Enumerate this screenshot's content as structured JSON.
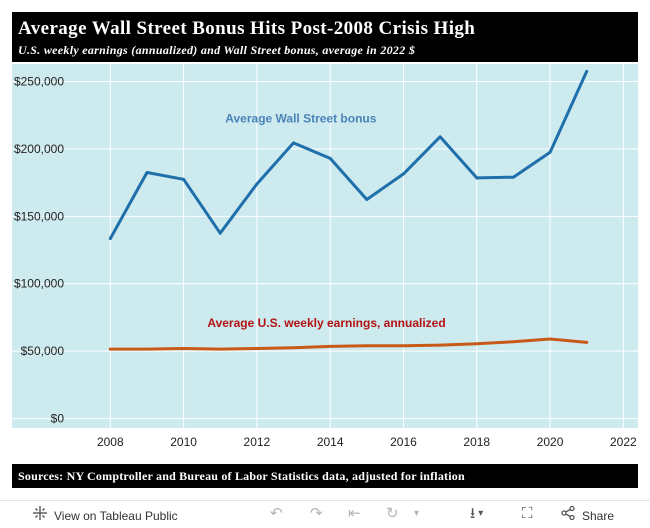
{
  "header": {
    "title": "Average Wall Street Bonus Hits Post-2008 Crisis High",
    "subtitle": "U.S. weekly earnings (annualized) and Wall Street bonus, average in 2022 $"
  },
  "footer": {
    "source": "Sources: NY Comptroller and Bureau of Labor Statistics data, adjusted for inflation"
  },
  "toolbar": {
    "view_label": "View on Tableau Public",
    "share_label": "Share",
    "icons": [
      "tableau-logo-icon",
      "undo-icon",
      "redo-icon",
      "revert-icon",
      "refresh-icon",
      "pause-icon",
      "download-icon",
      "fullscreen-icon",
      "share-icon"
    ]
  },
  "colors": {
    "plot_background": "#cdeaef",
    "bonus_line": "#1f6fab",
    "earnings_line": "#c85a19",
    "bonus_label": "#4a83b8",
    "earnings_label": "#b31212"
  },
  "chart_data": {
    "type": "line",
    "title": "Average Wall Street Bonus Hits Post-2008 Crisis High",
    "subtitle": "U.S. weekly earnings (annualized) and Wall Street bonus, average in 2022 $",
    "xlabel": "",
    "ylabel": "",
    "xlim": [
      2006.9,
      2022.4
    ],
    "ylim": [
      -7000,
      263000
    ],
    "x_ticks": [
      2008,
      2010,
      2012,
      2014,
      2016,
      2018,
      2020,
      2022
    ],
    "y_ticks": [
      0,
      50000,
      100000,
      150000,
      200000,
      250000
    ],
    "y_tick_labels": [
      "$0",
      "$50,000",
      "$100,000",
      "$150,000",
      "$200,000",
      "$250,000"
    ],
    "grid": true,
    "series": [
      {
        "name": "Average Wall Street bonus",
        "x": [
          2008,
          2009,
          2010,
          2011,
          2012,
          2013,
          2014,
          2015,
          2016,
          2017,
          2018,
          2019,
          2020,
          2021
        ],
        "values": [
          133500,
          182500,
          177500,
          137500,
          174000,
          204500,
          193000,
          162500,
          181500,
          209000,
          178500,
          179000,
          197500,
          257500
        ]
      },
      {
        "name": "Average U.S. weekly earnings, annualized",
        "x": [
          2008,
          2009,
          2010,
          2011,
          2012,
          2013,
          2014,
          2015,
          2016,
          2017,
          2018,
          2019,
          2020,
          2021
        ],
        "values": [
          51500,
          51500,
          52000,
          51500,
          52000,
          52500,
          53500,
          54000,
          54000,
          54500,
          55500,
          57000,
          59000,
          56500
        ]
      }
    ],
    "annotations": [
      {
        "text": "Average Wall Street bonus",
        "x": 2013.2,
        "y": 219500
      },
      {
        "text": "Average U.S. weekly earnings, annualized",
        "x": 2013.9,
        "y": 68000
      }
    ]
  }
}
